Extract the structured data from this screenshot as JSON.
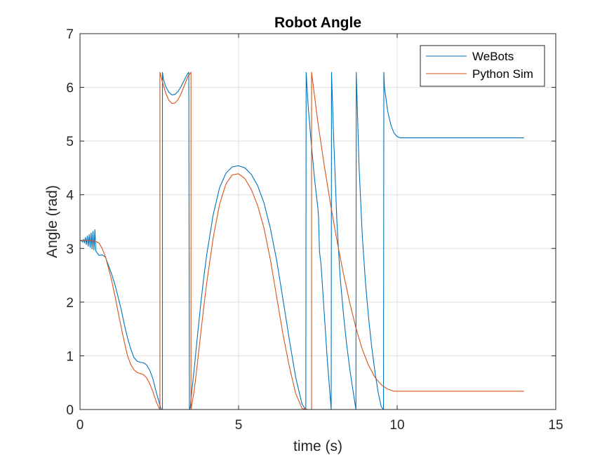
{
  "chart_data": {
    "type": "line",
    "title": "Robot Angle",
    "xlabel": "time (s)",
    "ylabel": "Angle (rad)",
    "xlim": [
      0,
      15
    ],
    "ylim": [
      0,
      7
    ],
    "xticks": [
      0,
      5,
      10,
      15
    ],
    "yticks": [
      0,
      1,
      2,
      3,
      4,
      5,
      6,
      7
    ],
    "grid": true,
    "legend_position": "top-right",
    "series": [
      {
        "name": "WeBots",
        "color": "#0072BD",
        "x": [
          0.0,
          0.05,
          0.08,
          0.11,
          0.14,
          0.17,
          0.2,
          0.23,
          0.26,
          0.29,
          0.32,
          0.35,
          0.38,
          0.41,
          0.44,
          0.47,
          0.5,
          0.6,
          0.7,
          0.8,
          0.9,
          1.0,
          1.1,
          1.2,
          1.3,
          1.4,
          1.5,
          1.6,
          1.7,
          1.8,
          1.9,
          2.0,
          2.1,
          2.2,
          2.3,
          2.4,
          2.5,
          2.55,
          2.58,
          2.6,
          2.6,
          2.63,
          2.7,
          2.8,
          2.9,
          3.0,
          3.1,
          3.2,
          3.3,
          3.4,
          3.43,
          3.45,
          3.45,
          3.48,
          3.5,
          3.6,
          3.7,
          3.8,
          3.9,
          4.0,
          4.2,
          4.4,
          4.6,
          4.8,
          5.0,
          5.2,
          5.4,
          5.6,
          5.8,
          6.0,
          6.2,
          6.4,
          6.6,
          6.8,
          7.0,
          7.12,
          7.13,
          7.2,
          7.3,
          7.4,
          7.5,
          7.52,
          7.55,
          7.6,
          7.7,
          7.8,
          7.92,
          7.93,
          8.0,
          8.1,
          8.2,
          8.3,
          8.4,
          8.5,
          8.6,
          8.7,
          8.71,
          8.8,
          8.9,
          9.0,
          9.1,
          9.2,
          9.3,
          9.4,
          9.5,
          9.57,
          9.58,
          9.6,
          9.7,
          9.8,
          9.9,
          10.0,
          10.1,
          10.5,
          11.0,
          12.0,
          13.0,
          14.0
        ],
        "y": [
          3.14,
          3.15,
          3.12,
          3.17,
          3.1,
          3.2,
          3.07,
          3.23,
          3.04,
          3.26,
          3.02,
          3.29,
          2.99,
          3.32,
          2.97,
          3.35,
          2.95,
          2.87,
          2.88,
          2.84,
          2.68,
          2.52,
          2.33,
          2.1,
          1.86,
          1.58,
          1.33,
          1.13,
          0.97,
          0.9,
          0.88,
          0.87,
          0.83,
          0.73,
          0.57,
          0.33,
          0.12,
          0.02,
          0.0,
          0.0,
          6.28,
          6.15,
          6.02,
          5.91,
          5.86,
          5.87,
          5.93,
          6.03,
          6.15,
          6.26,
          6.28,
          0.05,
          0.0,
          0.05,
          0.2,
          0.75,
          1.35,
          1.93,
          2.45,
          2.9,
          3.63,
          4.13,
          4.4,
          4.52,
          4.54,
          4.5,
          4.38,
          4.17,
          3.85,
          3.38,
          2.78,
          2.05,
          1.3,
          0.6,
          0.1,
          0.0,
          6.28,
          5.6,
          4.9,
          4.27,
          3.75,
          3.6,
          2.95,
          2.7,
          1.8,
          0.9,
          0.0,
          6.28,
          5.02,
          3.5,
          2.48,
          1.82,
          1.25,
          0.78,
          0.38,
          0.0,
          6.28,
          4.5,
          3.24,
          2.37,
          1.7,
          1.15,
          0.7,
          0.32,
          0.05,
          0.0,
          6.28,
          6.0,
          5.56,
          5.3,
          5.15,
          5.08,
          5.06,
          5.06,
          5.06,
          5.06,
          5.06,
          5.06
        ]
      },
      {
        "name": "Python Sim",
        "color": "#D95319",
        "x": [
          0.0,
          0.3,
          0.5,
          0.6,
          0.7,
          0.8,
          0.9,
          1.0,
          1.1,
          1.2,
          1.3,
          1.4,
          1.5,
          1.6,
          1.7,
          1.8,
          1.9,
          2.0,
          2.1,
          2.2,
          2.3,
          2.4,
          2.5,
          2.52,
          2.52,
          2.6,
          2.7,
          2.8,
          2.9,
          3.0,
          3.1,
          3.2,
          3.3,
          3.4,
          3.5,
          3.5,
          3.6,
          3.7,
          3.8,
          3.9,
          4.0,
          4.2,
          4.4,
          4.6,
          4.8,
          5.0,
          5.2,
          5.4,
          5.6,
          5.8,
          6.0,
          6.2,
          6.4,
          6.6,
          6.8,
          7.0,
          7.2,
          7.3,
          7.3,
          7.5,
          7.7,
          7.9,
          8.1,
          8.3,
          8.5,
          8.7,
          8.9,
          9.1,
          9.3,
          9.5,
          9.7,
          9.9,
          10.0,
          10.2,
          10.5,
          11.0,
          12.0,
          13.0,
          14.0
        ],
        "y": [
          3.15,
          3.15,
          3.13,
          3.1,
          3.0,
          2.85,
          2.63,
          2.4,
          2.12,
          1.82,
          1.53,
          1.25,
          1.0,
          0.84,
          0.74,
          0.69,
          0.67,
          0.65,
          0.59,
          0.48,
          0.33,
          0.15,
          0.02,
          0.0,
          6.28,
          6.1,
          5.9,
          5.76,
          5.7,
          5.71,
          5.78,
          5.9,
          6.05,
          6.2,
          6.28,
          0.0,
          0.35,
          0.85,
          1.38,
          1.9,
          2.38,
          3.2,
          3.82,
          4.2,
          4.37,
          4.39,
          4.3,
          4.1,
          3.8,
          3.38,
          2.8,
          2.1,
          1.4,
          0.8,
          0.3,
          0.02,
          0.0,
          0.0,
          6.28,
          5.35,
          4.55,
          3.82,
          3.15,
          2.55,
          2.0,
          1.52,
          1.12,
          0.82,
          0.6,
          0.46,
          0.38,
          0.34,
          0.34,
          0.34,
          0.34,
          0.34,
          0.34,
          0.34,
          0.34
        ]
      }
    ]
  }
}
